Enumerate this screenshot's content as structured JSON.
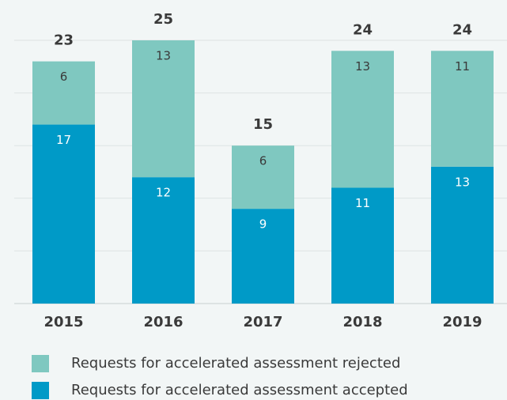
{
  "chart_data": {
    "type": "stacked_bar",
    "categories": [
      "2015",
      "2016",
      "2017",
      "2018",
      "2019"
    ],
    "series": [
      {
        "name": "Requests for accelerated assessment accepted",
        "color": "#009ac7",
        "values": [
          17,
          12,
          9,
          11,
          13
        ]
      },
      {
        "name": "Requests for accelerated assessment rejected",
        "color": "#7fc8c0",
        "values": [
          6,
          13,
          6,
          13,
          11
        ]
      }
    ],
    "total_labels": [
      23,
      25,
      15,
      24,
      24
    ],
    "ylim": [
      0,
      25
    ],
    "yticks": [
      0,
      5,
      10,
      15,
      20,
      25
    ],
    "grid": true
  }
}
